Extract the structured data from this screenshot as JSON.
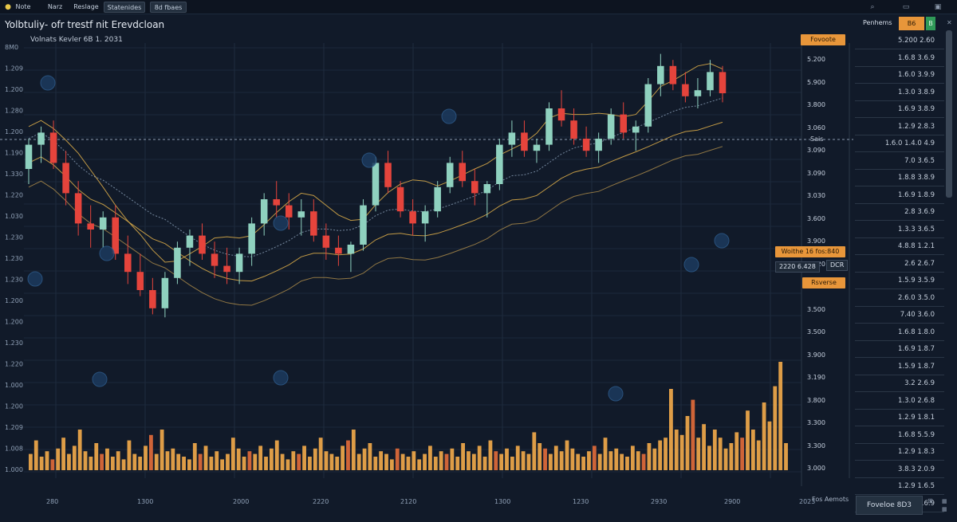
{
  "topbar": {
    "tabs": [
      "Note",
      "Narz",
      "Reslage",
      "Statenides",
      "8d fbaes"
    ],
    "icons": [
      "search-icon",
      "window-icon",
      "close-icon"
    ]
  },
  "title": "Yolbtuliy- ofr trestf nit Erevdcloan",
  "subtitle": "Volnats Kevler 6B 1. 2031",
  "right_header": {
    "label": "Penhems",
    "orange": "B6",
    "green": "B"
  },
  "tags": {
    "favorite_top": "Fovoote",
    "favorite_mid": "Woithe 16 fos:840",
    "price_box": "2220 6.428",
    "ticker": "DCR",
    "reverse": "Rsverse",
    "cross_label": "Sais"
  },
  "right_axis": [
    "5.200",
    "5.900",
    "3.800",
    "3.060",
    "3.090",
    "3.090",
    "3.030",
    "3.600",
    "3.900",
    "3.220",
    "3.620",
    "3.500",
    "3.500",
    "3.900",
    "3.190",
    "3.800",
    "3.300",
    "3.300",
    "3.000"
  ],
  "right_panel": [
    "5.200  2.60",
    "1.6.8  3.6.9",
    "1.6.0  3.9.9",
    "1.3.0  3.8.9",
    "1.6.9  3.8.9",
    "1.2.9  2.8.3",
    "1.6.0  1.4.0 4.9",
    "7.0  3.6.5",
    "1.8.8  3.8.9",
    "1.6.9  1.8.9",
    "2.8  3.6.9",
    "1.3.3  3.6.5",
    "4.8.8  1.2.1",
    "2.6  2.6.7",
    "1.5.9  3.5.9",
    "2.6.0  3.5.0",
    "7.40  3.6.0",
    "1.6.8  1.8.0",
    "1.6.9  1.8.7",
    "1.5.9  1.8.7",
    "3.2  2.6.9",
    "1.3.0  2.6.8",
    "1.2.9  1.8.1",
    "1.6.8  5.5.9",
    "1.2.9  1.8.3",
    "3.8.3  2.0.9",
    "1.2.9  1.6.5",
    "1.2.8.20  2.6.9"
  ],
  "bottom": {
    "label": "Fos Aemots",
    "button": "Foveloe   8D3"
  },
  "colors": {
    "up": "#8fd1bf",
    "down": "#e5443c",
    "volume": "#f0a84a",
    "accent": "#e8963a",
    "ma": "#e0b04a",
    "background": "#111a29"
  },
  "chart_data": {
    "type": "candlestick",
    "title": "Yolbtuliy- ofr trestf nit Erevdcloan",
    "subtitle": "Volnats Kevler 6B 1. 2031",
    "grid": true,
    "left_ticks": [
      "8M0",
      "1.209",
      "1.200",
      "1.280",
      "1.200",
      "1.190",
      "1.330",
      "1.220",
      "1.030",
      "1.230",
      "1.230",
      "1.230",
      "1.200",
      "1.200",
      "1.230",
      "1.220",
      "1.000",
      "1.200",
      "1.209",
      "1.008",
      "1.000"
    ],
    "x_ticks": [
      "280",
      "1300",
      "2000",
      "2220",
      "2120",
      "1300",
      "1230",
      "2930",
      "2900",
      "2023"
    ],
    "ylim": [
      0,
      100
    ],
    "candles": [
      {
        "o": 60,
        "h": 70,
        "l": 55,
        "c": 68
      },
      {
        "o": 68,
        "h": 74,
        "l": 62,
        "c": 72
      },
      {
        "o": 72,
        "h": 76,
        "l": 60,
        "c": 62
      },
      {
        "o": 62,
        "h": 66,
        "l": 48,
        "c": 52
      },
      {
        "o": 52,
        "h": 56,
        "l": 38,
        "c": 42
      },
      {
        "o": 42,
        "h": 48,
        "l": 34,
        "c": 40
      },
      {
        "o": 40,
        "h": 46,
        "l": 34,
        "c": 44
      },
      {
        "o": 44,
        "h": 48,
        "l": 30,
        "c": 32
      },
      {
        "o": 32,
        "h": 38,
        "l": 22,
        "c": 26
      },
      {
        "o": 26,
        "h": 32,
        "l": 18,
        "c": 20
      },
      {
        "o": 20,
        "h": 24,
        "l": 12,
        "c": 14
      },
      {
        "o": 14,
        "h": 26,
        "l": 11,
        "c": 24
      },
      {
        "o": 24,
        "h": 36,
        "l": 22,
        "c": 34
      },
      {
        "o": 34,
        "h": 40,
        "l": 28,
        "c": 38
      },
      {
        "o": 38,
        "h": 42,
        "l": 30,
        "c": 32
      },
      {
        "o": 32,
        "h": 36,
        "l": 24,
        "c": 28
      },
      {
        "o": 28,
        "h": 34,
        "l": 22,
        "c": 26
      },
      {
        "o": 26,
        "h": 34,
        "l": 22,
        "c": 32
      },
      {
        "o": 32,
        "h": 44,
        "l": 28,
        "c": 42
      },
      {
        "o": 42,
        "h": 52,
        "l": 38,
        "c": 50
      },
      {
        "o": 50,
        "h": 56,
        "l": 44,
        "c": 48
      },
      {
        "o": 48,
        "h": 52,
        "l": 40,
        "c": 44
      },
      {
        "o": 44,
        "h": 50,
        "l": 38,
        "c": 46
      },
      {
        "o": 46,
        "h": 50,
        "l": 36,
        "c": 38
      },
      {
        "o": 38,
        "h": 42,
        "l": 30,
        "c": 34
      },
      {
        "o": 34,
        "h": 38,
        "l": 28,
        "c": 32
      },
      {
        "o": 32,
        "h": 36,
        "l": 26,
        "c": 35
      },
      {
        "o": 35,
        "h": 50,
        "l": 33,
        "c": 48
      },
      {
        "o": 48,
        "h": 64,
        "l": 46,
        "c": 62
      },
      {
        "o": 62,
        "h": 66,
        "l": 52,
        "c": 54
      },
      {
        "o": 54,
        "h": 56,
        "l": 44,
        "c": 46
      },
      {
        "o": 46,
        "h": 50,
        "l": 38,
        "c": 42
      },
      {
        "o": 42,
        "h": 48,
        "l": 36,
        "c": 46
      },
      {
        "o": 46,
        "h": 56,
        "l": 44,
        "c": 54
      },
      {
        "o": 54,
        "h": 64,
        "l": 52,
        "c": 62
      },
      {
        "o": 62,
        "h": 66,
        "l": 54,
        "c": 56
      },
      {
        "o": 56,
        "h": 60,
        "l": 48,
        "c": 52
      },
      {
        "o": 52,
        "h": 56,
        "l": 44,
        "c": 55
      },
      {
        "o": 55,
        "h": 70,
        "l": 53,
        "c": 68
      },
      {
        "o": 68,
        "h": 76,
        "l": 64,
        "c": 72
      },
      {
        "o": 72,
        "h": 76,
        "l": 64,
        "c": 66
      },
      {
        "o": 66,
        "h": 70,
        "l": 62,
        "c": 68
      },
      {
        "o": 68,
        "h": 82,
        "l": 66,
        "c": 80
      },
      {
        "o": 80,
        "h": 86,
        "l": 74,
        "c": 76
      },
      {
        "o": 76,
        "h": 80,
        "l": 68,
        "c": 70
      },
      {
        "o": 70,
        "h": 74,
        "l": 64,
        "c": 66
      },
      {
        "o": 66,
        "h": 72,
        "l": 62,
        "c": 70
      },
      {
        "o": 70,
        "h": 80,
        "l": 68,
        "c": 78
      },
      {
        "o": 78,
        "h": 82,
        "l": 70,
        "c": 72
      },
      {
        "o": 72,
        "h": 76,
        "l": 66,
        "c": 74
      },
      {
        "o": 74,
        "h": 90,
        "l": 72,
        "c": 88
      },
      {
        "o": 88,
        "h": 98,
        "l": 84,
        "c": 94
      },
      {
        "o": 94,
        "h": 96,
        "l": 86,
        "c": 88
      },
      {
        "o": 88,
        "h": 92,
        "l": 82,
        "c": 84
      },
      {
        "o": 84,
        "h": 90,
        "l": 80,
        "c": 86
      },
      {
        "o": 86,
        "h": 96,
        "l": 84,
        "c": 92
      },
      {
        "o": 92,
        "h": 94,
        "l": 82,
        "c": 85
      }
    ],
    "volume": [
      12,
      22,
      10,
      14,
      8,
      16,
      24,
      12,
      18,
      30,
      14,
      10,
      20,
      12,
      16,
      10,
      14,
      8,
      22,
      12,
      10,
      18,
      26,
      12,
      30,
      14,
      16,
      12,
      10,
      8,
      20,
      12,
      18,
      10,
      14,
      8,
      12,
      24,
      16,
      10,
      14,
      12,
      18,
      10,
      16,
      22,
      12,
      8,
      14,
      12,
      18,
      10,
      16,
      24,
      14,
      12,
      10,
      18,
      22,
      30,
      12,
      16,
      20,
      10,
      14,
      12,
      8,
      16,
      12,
      10,
      14,
      8,
      12,
      18,
      10,
      14,
      12,
      16,
      10,
      20,
      14,
      12,
      18,
      10,
      22,
      14,
      12,
      16,
      10,
      18,
      14,
      12,
      28,
      20,
      16,
      12,
      18,
      14,
      22,
      16,
      12,
      10,
      14,
      18,
      12,
      24,
      14,
      16,
      12,
      10,
      18,
      14,
      12,
      20,
      16,
      22,
      24,
      60,
      30,
      26,
      40,
      52,
      24,
      34,
      18,
      30,
      24,
      16,
      20,
      28,
      24,
      44,
      30,
      22,
      50,
      36,
      62,
      80,
      20
    ]
  }
}
